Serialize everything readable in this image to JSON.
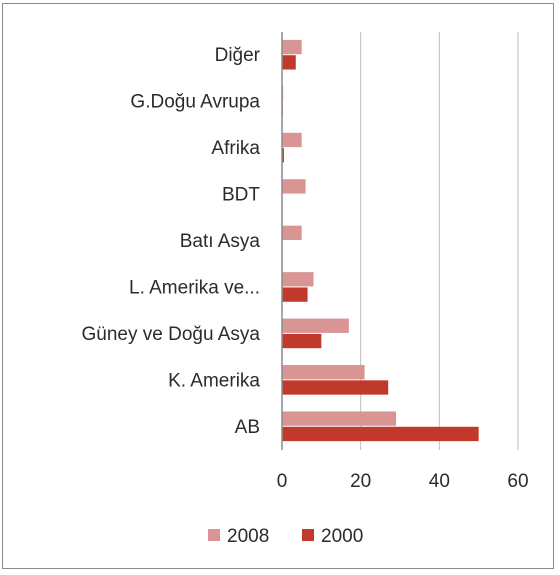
{
  "chart_data": {
    "type": "bar",
    "orientation": "horizontal",
    "title": "",
    "xlabel": "",
    "ylabel": "",
    "categories": [
      "Diğer",
      "G.Doğu Avrupa",
      "Afrika",
      "BDT",
      "Batı Asya",
      "L. Amerika ve...",
      "Güney ve Doğu Asya",
      "K. Amerika",
      "AB"
    ],
    "series": [
      {
        "name": "2008",
        "color": "#d99594",
        "values": [
          5,
          0.3,
          5,
          6,
          5,
          8,
          17,
          21,
          29
        ]
      },
      {
        "name": "2000",
        "color": "#c0392b",
        "values": [
          3.5,
          0.2,
          0.5,
          0,
          0,
          6.5,
          10,
          27,
          50
        ]
      }
    ],
    "xlim": [
      0,
      60
    ],
    "xticks": [
      "0",
      "20",
      "40",
      "60"
    ],
    "grid": true,
    "legend_position": "bottom",
    "legend": [
      "2008",
      "2000"
    ]
  }
}
